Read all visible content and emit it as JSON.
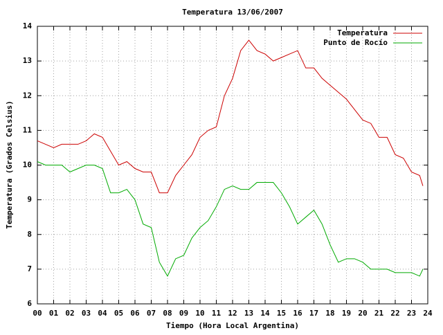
{
  "chart_data": {
    "type": "line",
    "title": "Temperatura 13/06/2007",
    "x_label": "Tiempo (Hora Local Argentina)",
    "y_label": "Temperatura (Grados Celsius)",
    "x": [
      0,
      0.5,
      1,
      1.5,
      2,
      2.5,
      3,
      3.5,
      4,
      4.5,
      5,
      5.5,
      6,
      6.5,
      7,
      7.5,
      8,
      8.5,
      9,
      9.5,
      10,
      10.5,
      11,
      11.5,
      12,
      12.5,
      13,
      13.5,
      14,
      14.5,
      15,
      15.5,
      16,
      16.5,
      17,
      17.5,
      18,
      18.5,
      19,
      19.5,
      20,
      20.5,
      21,
      21.5,
      22,
      22.5,
      23,
      23.5,
      23.7
    ],
    "series": [
      {
        "name": "Temperatura",
        "color": "#cc0000",
        "values": [
          10.7,
          10.6,
          10.5,
          10.6,
          10.6,
          10.6,
          10.7,
          10.9,
          10.8,
          10.4,
          10.0,
          10.1,
          9.9,
          9.8,
          9.8,
          9.2,
          9.2,
          9.7,
          10.0,
          10.3,
          10.8,
          11.0,
          11.1,
          12.0,
          12.5,
          13.3,
          13.6,
          13.3,
          13.2,
          13.0,
          13.1,
          13.2,
          13.3,
          12.8,
          12.8,
          12.5,
          12.3,
          12.1,
          11.9,
          11.6,
          11.3,
          11.2,
          10.8,
          10.8,
          10.3,
          10.2,
          9.8,
          9.7,
          9.4
        ]
      },
      {
        "name": "Punto de Rocío",
        "color": "#00aa00",
        "values": [
          10.1,
          10.0,
          10.0,
          10.0,
          9.8,
          9.9,
          10.0,
          10.0,
          9.9,
          9.2,
          9.2,
          9.3,
          9.0,
          8.3,
          8.2,
          7.2,
          6.8,
          7.3,
          7.4,
          7.9,
          8.2,
          8.4,
          8.8,
          9.3,
          9.4,
          9.3,
          9.3,
          9.5,
          9.5,
          9.5,
          9.2,
          8.8,
          8.3,
          8.5,
          8.7,
          8.3,
          7.7,
          7.2,
          7.3,
          7.3,
          7.2,
          7.0,
          7.0,
          7.0,
          6.9,
          6.9,
          6.9,
          6.8,
          7.0
        ]
      }
    ],
    "xlim": [
      0,
      24
    ],
    "ylim": [
      6,
      14
    ],
    "xticks": [
      {
        "value": 0,
        "label": "00"
      },
      {
        "value": 1,
        "label": "01"
      },
      {
        "value": 2,
        "label": "02"
      },
      {
        "value": 3,
        "label": "03"
      },
      {
        "value": 4,
        "label": "04"
      },
      {
        "value": 5,
        "label": "05"
      },
      {
        "value": 6,
        "label": "06"
      },
      {
        "value": 7,
        "label": "07"
      },
      {
        "value": 8,
        "label": "08"
      },
      {
        "value": 9,
        "label": "09"
      },
      10,
      11,
      12,
      13,
      14,
      15,
      16,
      17,
      18,
      19,
      20,
      21,
      22,
      23,
      24
    ],
    "yticks": [
      6,
      7,
      8,
      9,
      10,
      11,
      12,
      13,
      14
    ],
    "grid": true,
    "legend": "top right"
  }
}
